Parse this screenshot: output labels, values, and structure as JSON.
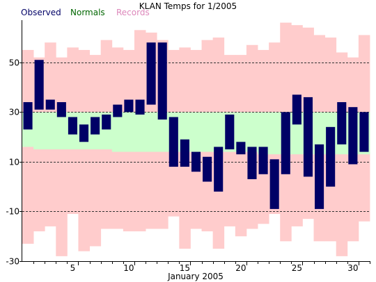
{
  "chart_data": {
    "type": "bar",
    "title": "KLAN Temps for 1/2005",
    "legend": [
      {
        "label": "Observed",
        "color": "#000066"
      },
      {
        "label": "Normals",
        "color": "#006600"
      },
      {
        "label": "Records",
        "color": "#dd88bb"
      }
    ],
    "legend_position": "top-left",
    "xlabel": "January 2005",
    "ylabel": "",
    "ylim": [
      -30,
      67
    ],
    "yticks": [
      -30,
      -10,
      10,
      30,
      50
    ],
    "xticks": [
      5,
      10,
      15,
      20,
      25,
      30
    ],
    "grid": "dashed horizontal at y ticks",
    "days": [
      1,
      2,
      3,
      4,
      5,
      6,
      7,
      8,
      9,
      10,
      11,
      12,
      13,
      14,
      15,
      16,
      17,
      18,
      19,
      20,
      21,
      22,
      23,
      24,
      25,
      26,
      27,
      28,
      29,
      30,
      31
    ],
    "series": [
      {
        "name": "Records",
        "color": "#ffcccc",
        "high": [
          55,
          52,
          58,
          52,
          56,
          55,
          53,
          59,
          56,
          55,
          63,
          62,
          59,
          55,
          56,
          55,
          59,
          60,
          53,
          53,
          57,
          55,
          58,
          66,
          65,
          64,
          61,
          60,
          54,
          52,
          61
        ],
        "low": [
          -23,
          -18,
          -16,
          -28,
          -11,
          -26,
          -24,
          -17,
          -17,
          -18,
          -18,
          -17,
          -17,
          -12,
          -25,
          -17,
          -18,
          -25,
          -16,
          -20,
          -17,
          -15,
          -11,
          -22,
          -16,
          -13,
          -22,
          -22,
          -28,
          -22,
          -14
        ]
      },
      {
        "name": "Normals",
        "color": "#ccffcc",
        "high": [
          30,
          30,
          30,
          30,
          30,
          30,
          30,
          30,
          30,
          30,
          30,
          30,
          30,
          30,
          30,
          30,
          30,
          30,
          30,
          30,
          30,
          30,
          30,
          30,
          30,
          30,
          30,
          30,
          30,
          30,
          30
        ],
        "low": [
          16,
          15,
          15,
          15,
          15,
          15,
          15,
          15,
          14,
          14,
          14,
          14,
          14,
          14,
          14,
          14,
          14,
          14,
          14,
          14,
          14,
          13,
          13,
          13,
          13,
          13,
          13,
          13,
          13,
          13,
          13
        ]
      },
      {
        "name": "Observed",
        "color": "#000066",
        "high": [
          34,
          51,
          35,
          34,
          28,
          25,
          28,
          29,
          33,
          35,
          35,
          58,
          58,
          28,
          19,
          14,
          12,
          16,
          29,
          18,
          16,
          16,
          11,
          30,
          37,
          36,
          17,
          24,
          34,
          32,
          30
        ],
        "low": [
          23,
          31,
          31,
          28,
          21,
          18,
          21,
          23,
          28,
          30,
          29,
          33,
          27,
          8,
          8,
          6,
          2,
          -2,
          15,
          13,
          3,
          5,
          -9,
          5,
          25,
          4,
          -9,
          0,
          17,
          9,
          14
        ]
      }
    ]
  }
}
